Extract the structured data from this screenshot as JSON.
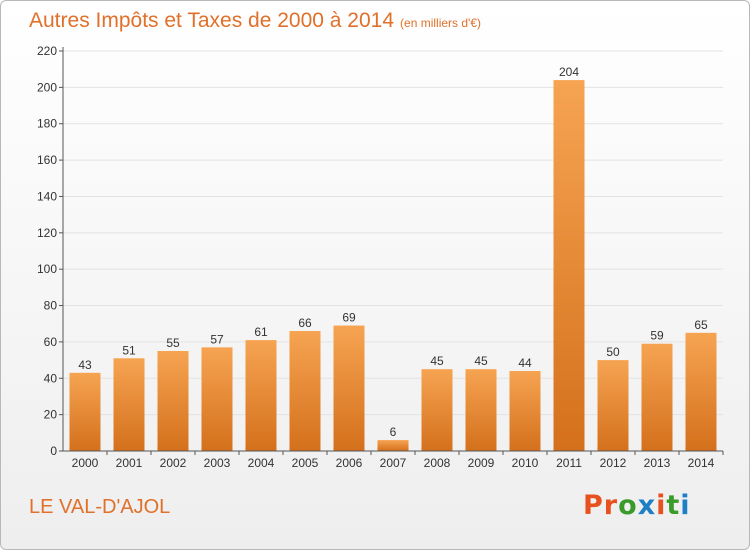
{
  "header": {
    "title": "Autres Impôts et Taxes de 2000 à 2014",
    "subtitle": "(en milliers d'€)"
  },
  "footer": {
    "commune": "LE VAL-D'AJOL",
    "logo_text": "Proxiti",
    "logo_colors": [
      "#e8501e",
      "#e8501e",
      "#3a9b2b",
      "#1e7fc4",
      "#e8501e",
      "#3a9b2b",
      "#1e7fc4"
    ]
  },
  "colors": {
    "bar_light": "#f6a452",
    "bar_dark": "#d4701c",
    "axis": "#555555",
    "grid": "#e3e3e3",
    "text": "#333333"
  },
  "chart_data": {
    "type": "bar",
    "categories": [
      "2000",
      "2001",
      "2002",
      "2003",
      "2004",
      "2005",
      "2006",
      "2007",
      "2008",
      "2009",
      "2010",
      "2011",
      "2012",
      "2013",
      "2014"
    ],
    "values": [
      43,
      51,
      55,
      57,
      61,
      66,
      69,
      6,
      45,
      45,
      44,
      204,
      50,
      59,
      65
    ],
    "title": "Autres Impôts et Taxes de 2000 à 2014",
    "ylim": [
      0,
      220
    ],
    "yticks": [
      0,
      20,
      40,
      60,
      80,
      100,
      120,
      140,
      160,
      180,
      200,
      220
    ],
    "grid": true,
    "legend": "none"
  }
}
